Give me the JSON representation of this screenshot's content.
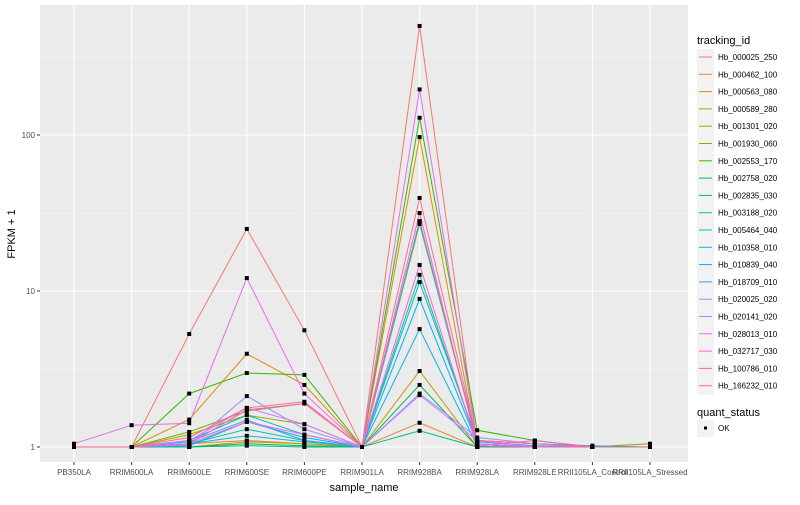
{
  "chart_data": {
    "type": "line",
    "title": "",
    "xlabel": "sample_name",
    "ylabel": "FPKM + 1",
    "y_scale": "log10",
    "ylim": [
      0.8,
      600
    ],
    "y_ticks": [
      1,
      10,
      100
    ],
    "y_tick_labels": [
      "1",
      "10",
      "100"
    ],
    "grid": true,
    "legend_position": "right",
    "categories": [
      "PB350LA",
      "RRIM600LA",
      "RRIM600LE",
      "RRIM600SE",
      "RRIM600PE",
      "RRIM901LA",
      "RRIM928BA",
      "RRIM928LA",
      "RRIM928LE",
      "RRII105LA_Control",
      "RRII105LA_Stressed"
    ],
    "legend_title": "tracking_id",
    "shape_legend_title": "quant_status",
    "shape_legend_items": [
      "OK"
    ],
    "series": [
      {
        "name": "Hb_000025_250",
        "color": "#F8766D",
        "values": [
          1,
          1,
          5.3,
          25,
          5.6,
          1,
          500,
          1.05,
          1,
          1,
          1
        ]
      },
      {
        "name": "Hb_000462_100",
        "color": "#EA8331",
        "values": [
          1,
          1,
          1.05,
          1.1,
          1.05,
          1,
          1.43,
          1,
          1,
          1,
          1
        ]
      },
      {
        "name": "Hb_000563_080",
        "color": "#D89000",
        "values": [
          1,
          1,
          1.5,
          3.96,
          2.5,
          1,
          97,
          1,
          1,
          1,
          1
        ]
      },
      {
        "name": "Hb_000589_280",
        "color": "#C09B00",
        "values": [
          1,
          1,
          1,
          1.08,
          1.05,
          1,
          3.07,
          1,
          1,
          1,
          1
        ]
      },
      {
        "name": "Hb_001301_020",
        "color": "#A3A500",
        "values": [
          1,
          1,
          1.2,
          1.6,
          1.4,
          1,
          26.9,
          1.1,
          1.05,
          1,
          1
        ]
      },
      {
        "name": "Hb_001930_060",
        "color": "#7CAE00",
        "values": [
          1,
          1,
          1.25,
          1.7,
          1.9,
          1,
          28,
          1.05,
          1,
          1,
          1.05
        ]
      },
      {
        "name": "Hb_002553_170",
        "color": "#39B600",
        "values": [
          1,
          1,
          2.2,
          2.98,
          2.9,
          1,
          129,
          1.28,
          1.1,
          1,
          1
        ]
      },
      {
        "name": "Hb_002758_020",
        "color": "#00BB4E",
        "values": [
          1,
          1,
          1,
          1.05,
          1.02,
          1,
          2.5,
          1,
          1,
          1,
          1
        ]
      },
      {
        "name": "Hb_002835_030",
        "color": "#00BF7D",
        "values": [
          1,
          1,
          1,
          1.02,
          1,
          1,
          1.27,
          1,
          1,
          1,
          1
        ]
      },
      {
        "name": "Hb_003188_020",
        "color": "#00C1A3",
        "values": [
          1,
          1,
          1.05,
          1.3,
          1.1,
          1,
          12.7,
          1.05,
          1,
          1,
          1
        ]
      },
      {
        "name": "Hb_005464_040",
        "color": "#00BFC4",
        "values": [
          1,
          1,
          1.1,
          1.6,
          1.2,
          1,
          11.4,
          1.1,
          1.05,
          1.02,
          1
        ]
      },
      {
        "name": "Hb_010358_010",
        "color": "#00BAE0",
        "values": [
          1,
          1,
          1.05,
          1.18,
          1.08,
          1,
          5.7,
          1.02,
          1,
          1,
          1
        ]
      },
      {
        "name": "Hb_010839_040",
        "color": "#00B0F6",
        "values": [
          1,
          1,
          1.02,
          1.45,
          1.15,
          1,
          8.9,
          1.05,
          1,
          1,
          1
        ]
      },
      {
        "name": "Hb_018709_010",
        "color": "#35A2FF",
        "values": [
          1,
          1,
          1.08,
          1.49,
          1.1,
          1,
          28,
          1.08,
          1.02,
          1,
          1
        ]
      },
      {
        "name": "Hb_020025_020",
        "color": "#9590FF",
        "values": [
          1,
          1,
          1.03,
          2.12,
          1.3,
          1,
          2.2,
          1.15,
          1.05,
          1,
          1
        ]
      },
      {
        "name": "Hb_020141_020",
        "color": "#C77CFF",
        "values": [
          1,
          1,
          1.1,
          1.78,
          1.4,
          1,
          2.15,
          1.1,
          1,
          1,
          1
        ]
      },
      {
        "name": "Hb_028013_010",
        "color": "#E76BF3",
        "values": [
          1.05,
          1.38,
          1.42,
          12.1,
          2.2,
          1,
          196,
          1.05,
          1,
          1,
          1
        ]
      },
      {
        "name": "Hb_032717_030",
        "color": "#FA62DB",
        "values": [
          1,
          1,
          1.05,
          1.45,
          1.2,
          1,
          14.7,
          1.02,
          1.1,
          1,
          1
        ]
      },
      {
        "name": "Hb_100786_010",
        "color": "#FF62BC",
        "values": [
          1,
          1,
          1.05,
          1.73,
          1.9,
          1,
          31.6,
          1.02,
          1,
          1,
          1
        ]
      },
      {
        "name": "Hb_166232_010",
        "color": "#FF6C91",
        "values": [
          1,
          1,
          1.15,
          1.78,
          1.95,
          1,
          39.5,
          1.1,
          1.05,
          1,
          1
        ]
      }
    ]
  }
}
